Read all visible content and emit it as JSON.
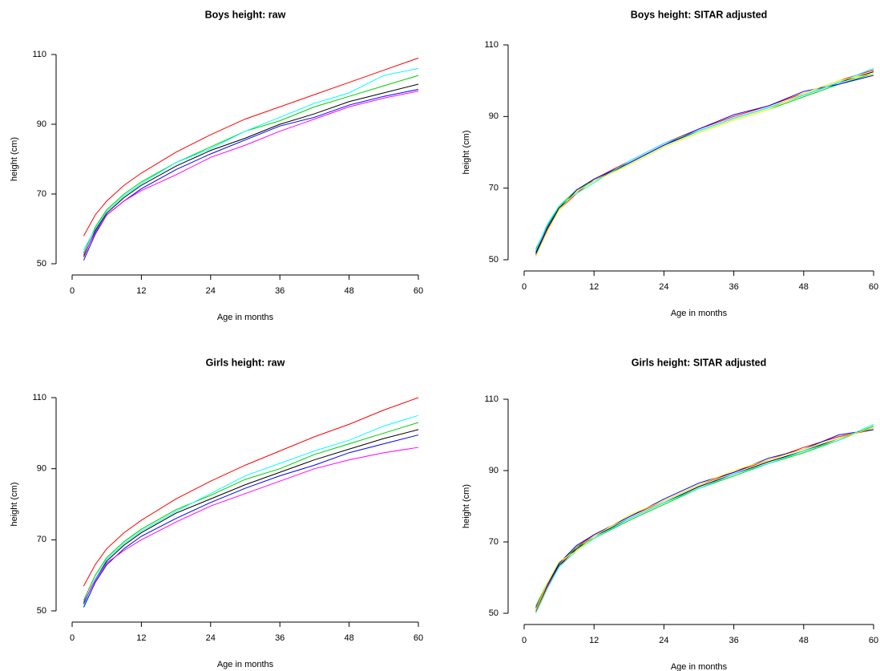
{
  "chart_data": [
    {
      "type": "line",
      "title": "Boys height: raw",
      "x_label": "Age in months",
      "y_label": "height (cm)",
      "x": [
        2,
        4,
        6,
        9,
        12,
        18,
        24,
        30,
        36,
        42,
        48,
        54,
        60
      ],
      "xlim": [
        0,
        60
      ],
      "ylim": [
        50,
        110
      ],
      "xticks": [
        0,
        12,
        24,
        36,
        48,
        60
      ],
      "yticks": [
        50,
        70,
        90,
        110
      ],
      "series": [
        {
          "color": "#000000",
          "values": [
            52,
            59.5,
            64.5,
            69,
            72.5,
            78,
            82.5,
            86,
            90,
            93,
            96.5,
            99,
            101.5
          ]
        },
        {
          "color": "#FF0000",
          "values": [
            58,
            64,
            68,
            72.5,
            76,
            82,
            87,
            91.5,
            95,
            98.5,
            102,
            105.5,
            109
          ]
        },
        {
          "color": "#00CD00",
          "values": [
            53,
            60.5,
            65.5,
            70,
            73.5,
            79,
            83.5,
            88,
            91,
            95,
            98,
            101,
            104
          ]
        },
        {
          "color": "#0000FF",
          "values": [
            51,
            58.5,
            64,
            68,
            71.5,
            77,
            81.5,
            85.5,
            89.5,
            92,
            95.5,
            98,
            100
          ]
        },
        {
          "color": "#00FFFF",
          "values": [
            54,
            60,
            65,
            69.5,
            73,
            79,
            83,
            88,
            92,
            96,
            99,
            104,
            106
          ]
        },
        {
          "color": "#FF00FF",
          "values": [
            52.5,
            59,
            64,
            68,
            71,
            75.5,
            80.5,
            84,
            88,
            91.5,
            95,
            97.5,
            99.5
          ]
        }
      ]
    },
    {
      "type": "line",
      "title": "Boys height: SITAR adjusted",
      "x_label": "Age in months",
      "y_label": "height (cm)",
      "x": [
        2,
        4,
        6,
        9,
        12,
        18,
        24,
        30,
        36,
        42,
        48,
        54,
        60
      ],
      "xlim": [
        0,
        60
      ],
      "ylim": [
        50,
        110
      ],
      "xticks": [
        0,
        12,
        24,
        36,
        48,
        60
      ],
      "yticks": [
        50,
        70,
        90,
        110
      ],
      "series": [
        {
          "color": "#000000",
          "values": [
            52,
            59,
            64.5,
            69,
            72,
            77,
            82,
            86,
            89.5,
            92.5,
            96,
            99.5,
            102.5
          ]
        },
        {
          "color": "#FF0000",
          "values": [
            51,
            58.5,
            64,
            68.5,
            72.5,
            77.5,
            82.5,
            86.5,
            90,
            93,
            96.5,
            100,
            103
          ]
        },
        {
          "color": "#00CD00",
          "values": [
            53,
            59.5,
            65,
            69.5,
            72,
            76.5,
            81.5,
            85.5,
            89,
            92,
            95.5,
            99,
            102
          ]
        },
        {
          "color": "#0000FF",
          "values": [
            51.5,
            59,
            64,
            69.5,
            72.5,
            77,
            82,
            86.5,
            90.5,
            93,
            97,
            99,
            101.5
          ]
        },
        {
          "color": "#00FFFF",
          "values": [
            52.5,
            60,
            65,
            68.5,
            71.5,
            77.5,
            82.5,
            86,
            89.5,
            92.5,
            96,
            99.5,
            103.5
          ]
        },
        {
          "color": "#FFFF00",
          "values": [
            51,
            58,
            64,
            69,
            72,
            76.5,
            81.5,
            85.5,
            89,
            92,
            96.5,
            100,
            102
          ]
        }
      ]
    },
    {
      "type": "line",
      "title": "Girls height: raw",
      "x_label": "Age in months",
      "y_label": "height (cm)",
      "x": [
        2,
        4,
        6,
        9,
        12,
        18,
        24,
        30,
        36,
        42,
        48,
        54,
        60
      ],
      "xlim": [
        0,
        60
      ],
      "ylim": [
        50,
        110
      ],
      "xticks": [
        0,
        12,
        24,
        36,
        48,
        60
      ],
      "yticks": [
        50,
        70,
        90,
        110
      ],
      "series": [
        {
          "color": "#000000",
          "values": [
            52,
            59,
            64,
            68.5,
            72,
            77.5,
            81.5,
            85.5,
            89,
            92.5,
            95.5,
            98.5,
            101
          ]
        },
        {
          "color": "#FF0000",
          "values": [
            57,
            63,
            67.5,
            72,
            75.5,
            81.5,
            86.5,
            91,
            95,
            99,
            102.5,
            106.5,
            110
          ]
        },
        {
          "color": "#00CD00",
          "values": [
            53,
            60,
            65,
            69.5,
            73,
            78.5,
            82.5,
            87,
            90,
            94,
            97,
            100,
            103
          ]
        },
        {
          "color": "#0000FF",
          "values": [
            51,
            58,
            63,
            67.5,
            71,
            76,
            80.5,
            84.5,
            88,
            91,
            94.5,
            97,
            99.5
          ]
        },
        {
          "color": "#00FFFF",
          "values": [
            51.5,
            59,
            64.5,
            69,
            72.5,
            78,
            83,
            88,
            91.5,
            95,
            98,
            102,
            105
          ]
        },
        {
          "color": "#FF00FF",
          "values": [
            52.5,
            58.5,
            63.5,
            67,
            70,
            75,
            79.5,
            83,
            86.5,
            90,
            92.5,
            94.5,
            96
          ]
        }
      ]
    },
    {
      "type": "line",
      "title": "Girls height: SITAR adjusted",
      "x_label": "Age in months",
      "y_label": "height (cm)",
      "x": [
        2,
        4,
        6,
        9,
        12,
        18,
        24,
        30,
        36,
        42,
        48,
        54,
        60
      ],
      "xlim": [
        0,
        60
      ],
      "ylim": [
        50,
        110
      ],
      "xticks": [
        0,
        12,
        24,
        36,
        48,
        60
      ],
      "yticks": [
        50,
        70,
        90,
        110
      ],
      "series": [
        {
          "color": "#000000",
          "values": [
            51,
            58,
            63.5,
            68,
            71.5,
            76.5,
            81,
            85.5,
            89,
            92.5,
            95.5,
            99,
            102
          ]
        },
        {
          "color": "#FF0000",
          "values": [
            50.5,
            57.5,
            63,
            68.5,
            72,
            77,
            81.5,
            86,
            89.5,
            93,
            96.5,
            99.5,
            101.5
          ]
        },
        {
          "color": "#00CD00",
          "values": [
            52,
            58.5,
            64,
            68.5,
            71,
            76,
            80.5,
            85,
            88.5,
            92,
            95,
            98.5,
            102.5
          ]
        },
        {
          "color": "#0000FF",
          "values": [
            51.5,
            58,
            64,
            69,
            72,
            77,
            82,
            86.5,
            89.5,
            93.5,
            96,
            100,
            101.5
          ]
        },
        {
          "color": "#00FFFF",
          "values": [
            50,
            57,
            63,
            67.5,
            71,
            76.5,
            81,
            85,
            89,
            92,
            95.5,
            98.5,
            103
          ]
        },
        {
          "color": "#FFFF00",
          "values": [
            51,
            58.5,
            64.5,
            67.5,
            71.5,
            77.5,
            81.5,
            86,
            90,
            93,
            96,
            99,
            102
          ]
        }
      ]
    }
  ]
}
